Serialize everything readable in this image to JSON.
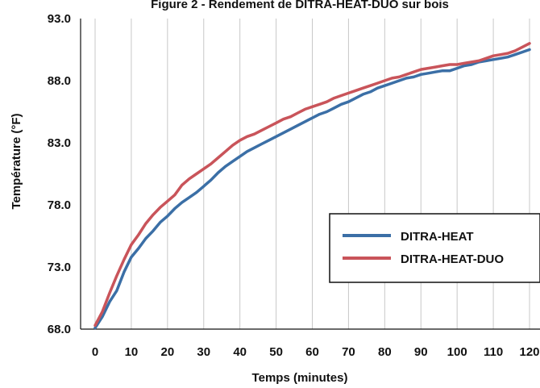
{
  "chart_data": {
    "type": "line",
    "title": "Figure 2 - Rendement de DITRA-HEAT-DUO sur bois",
    "xlabel": "Temps (minutes)",
    "ylabel": "Température (°F)",
    "xlim": [
      0,
      120
    ],
    "ylim": [
      68.0,
      93.0
    ],
    "x_ticks": [
      "0",
      "10",
      "20",
      "30",
      "40",
      "50",
      "60",
      "70",
      "80",
      "90",
      "100",
      "110",
      "120"
    ],
    "y_ticks": [
      "68.0",
      "73.0",
      "78.0",
      "83.0",
      "88.0",
      "93.0"
    ],
    "grid": "vertical",
    "legend_position": "right",
    "series": [
      {
        "name": "DITRA-HEAT",
        "color": "#3b6fa6",
        "x": [
          0,
          2,
          4,
          6,
          8,
          10,
          12,
          14,
          16,
          18,
          20,
          22,
          24,
          26,
          28,
          30,
          32,
          34,
          36,
          38,
          40,
          42,
          44,
          46,
          48,
          50,
          52,
          54,
          56,
          58,
          60,
          62,
          64,
          66,
          68,
          70,
          72,
          74,
          76,
          78,
          80,
          82,
          84,
          86,
          88,
          90,
          92,
          94,
          96,
          98,
          100,
          102,
          104,
          106,
          108,
          110,
          112,
          114,
          116,
          118,
          120
        ],
        "y": [
          68.1,
          69.0,
          70.2,
          71.1,
          72.6,
          73.8,
          74.5,
          75.3,
          75.9,
          76.6,
          77.1,
          77.7,
          78.2,
          78.6,
          79.0,
          79.5,
          80.0,
          80.6,
          81.1,
          81.5,
          81.9,
          82.3,
          82.6,
          82.9,
          83.2,
          83.5,
          83.8,
          84.1,
          84.4,
          84.7,
          85.0,
          85.3,
          85.5,
          85.8,
          86.1,
          86.3,
          86.6,
          86.9,
          87.1,
          87.4,
          87.6,
          87.8,
          88.0,
          88.2,
          88.3,
          88.5,
          88.6,
          88.7,
          88.8,
          88.8,
          89.0,
          89.2,
          89.3,
          89.5,
          89.6,
          89.7,
          89.8,
          89.9,
          90.1,
          90.3,
          90.5
        ]
      },
      {
        "name": "DITRA-HEAT-DUO",
        "color": "#c9545a",
        "x": [
          0,
          2,
          4,
          6,
          8,
          10,
          12,
          14,
          16,
          18,
          20,
          22,
          24,
          26,
          28,
          30,
          32,
          34,
          36,
          38,
          40,
          42,
          44,
          46,
          48,
          50,
          52,
          54,
          56,
          58,
          60,
          62,
          64,
          66,
          68,
          70,
          72,
          74,
          76,
          78,
          80,
          82,
          84,
          86,
          88,
          90,
          92,
          94,
          96,
          98,
          100,
          102,
          104,
          106,
          108,
          110,
          112,
          114,
          116,
          118,
          120
        ],
        "y": [
          68.3,
          69.4,
          70.9,
          72.3,
          73.6,
          74.8,
          75.6,
          76.5,
          77.2,
          77.8,
          78.3,
          78.8,
          79.6,
          80.1,
          80.5,
          80.9,
          81.3,
          81.8,
          82.3,
          82.8,
          83.2,
          83.5,
          83.7,
          84.0,
          84.3,
          84.6,
          84.9,
          85.1,
          85.4,
          85.7,
          85.9,
          86.1,
          86.3,
          86.6,
          86.8,
          87.0,
          87.2,
          87.4,
          87.6,
          87.8,
          88.0,
          88.2,
          88.3,
          88.5,
          88.7,
          88.9,
          89.0,
          89.1,
          89.2,
          89.3,
          89.3,
          89.4,
          89.5,
          89.6,
          89.8,
          90.0,
          90.1,
          90.2,
          90.4,
          90.7,
          91.0
        ]
      }
    ]
  }
}
